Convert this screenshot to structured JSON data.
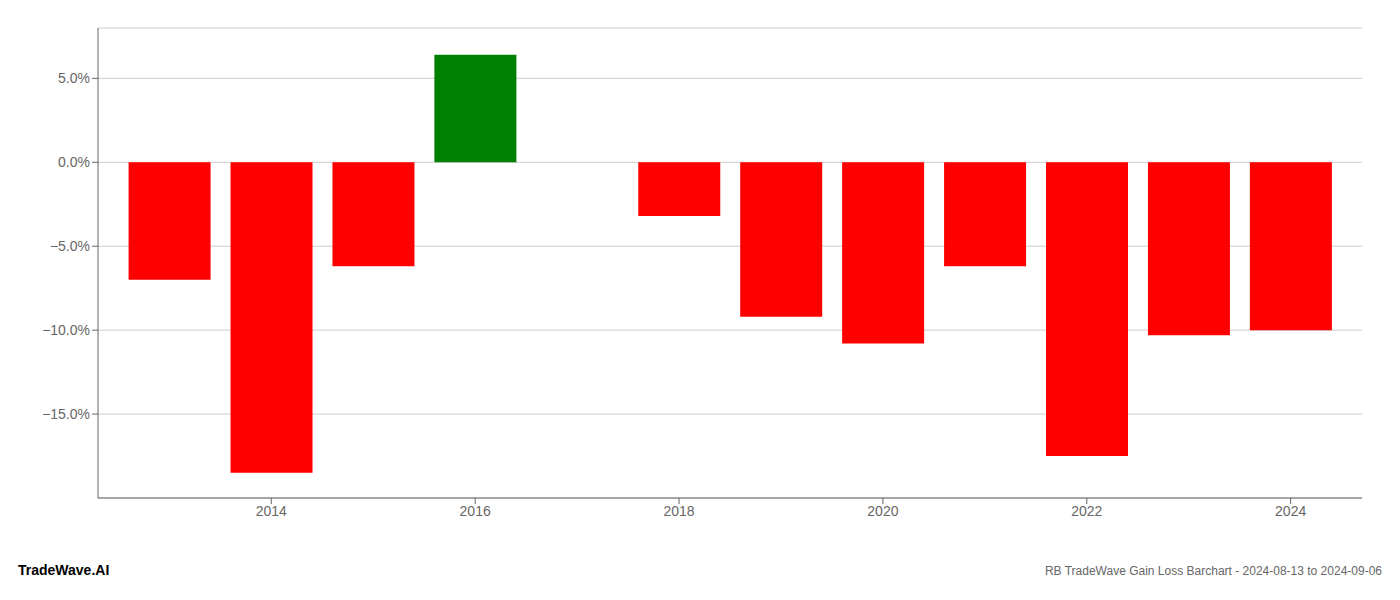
{
  "chart_data": {
    "type": "bar",
    "x": [
      2013,
      2014,
      2015,
      2016,
      2018,
      2019,
      2020,
      2021,
      2022,
      2023,
      2024
    ],
    "values": [
      -7.0,
      -18.5,
      -6.2,
      6.4,
      -3.2,
      -9.2,
      -10.8,
      -6.2,
      -17.5,
      -10.3,
      -10.0
    ],
    "colors": [
      "#ff0000",
      "#ff0000",
      "#ff0000",
      "#008000",
      "#ff0000",
      "#ff0000",
      "#ff0000",
      "#ff0000",
      "#ff0000",
      "#ff0000",
      "#ff0000"
    ],
    "xlim": [
      2012.3,
      2024.7
    ],
    "xticks": [
      2014,
      2016,
      2018,
      2020,
      2022,
      2024
    ],
    "ylim": [
      -20,
      8
    ],
    "yticks": [
      {
        "value": 5.0,
        "label": "5.0%"
      },
      {
        "value": 0.0,
        "label": "0.0%"
      },
      {
        "value": -5.0,
        "label": "−5.0%"
      },
      {
        "value": -10.0,
        "label": "−10.0%"
      },
      {
        "value": -15.0,
        "label": "−15.0%"
      }
    ],
    "grid": true,
    "annotations": [
      "TradeWave.AI",
      "RB TradeWave Gain Loss Barchart - 2024-08-13 to 2024-09-06"
    ]
  }
}
